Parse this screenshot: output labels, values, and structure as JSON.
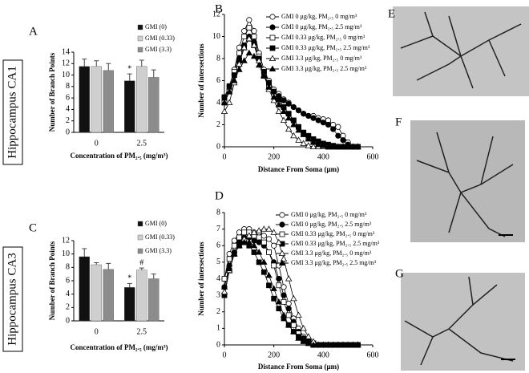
{
  "chart_data": [
    {
      "type": "bar",
      "panel": "A",
      "categories": [
        "0",
        "2.5"
      ],
      "x_label": "Concentration of PM₂.₅ (mg/m³)",
      "y_label": "Number of Branch Points",
      "ylim": [
        0,
        14
      ],
      "yticks": [
        0,
        2,
        4,
        6,
        8,
        10,
        12,
        14
      ],
      "grid": false,
      "series": [
        {
          "name": "GMI (0)",
          "color": "#111111",
          "values": [
            11.5,
            9.0
          ],
          "errors": [
            1.3,
            1.2
          ],
          "annotations": [
            null,
            "*"
          ]
        },
        {
          "name": "GMI (0.33)",
          "color": "#cfcfcf",
          "values": [
            11.5,
            11.5
          ],
          "errors": [
            1.0,
            1.1
          ],
          "annotations": [
            null,
            null
          ]
        },
        {
          "name": "GMI (3.3)",
          "color": "#8c8c8c",
          "values": [
            10.8,
            9.6
          ],
          "errors": [
            1.2,
            1.3
          ],
          "annotations": [
            null,
            null
          ]
        }
      ]
    },
    {
      "type": "line",
      "panel": "B",
      "x": [
        0,
        20,
        40,
        60,
        80,
        100,
        120,
        140,
        160,
        180,
        200,
        220,
        240,
        260,
        280,
        300,
        320,
        340,
        360,
        380,
        400,
        420,
        440,
        460,
        480,
        500,
        520,
        540
      ],
      "x_label": "Distance From Soma (μm)",
      "y_label": "Number of intersections",
      "xlim": [
        0,
        600
      ],
      "xticks": [
        0,
        200,
        400,
        600
      ],
      "ylim": [
        0,
        12
      ],
      "yticks": [
        0,
        2,
        4,
        6,
        8,
        10,
        12
      ],
      "series": [
        {
          "name": "GMI 0 μg/kg, PM₂.₅ 0 mg/m³",
          "color": "#000000",
          "marker": "circle",
          "filled": false,
          "values": [
            4.5,
            5.5,
            7,
            9,
            10.5,
            11.5,
            10.5,
            8.5,
            7,
            6,
            5.2,
            4.8,
            4.3,
            4,
            3.6,
            3.3,
            3,
            2.8,
            2.8,
            2.6,
            2.5,
            2.4,
            2,
            1.8,
            1,
            0.4,
            0,
            0
          ]
        },
        {
          "name": "GMI 0 μg/kg, PM₂.₅ 2.5 mg/m³",
          "color": "#000000",
          "marker": "circle",
          "filled": true,
          "values": [
            4.2,
            5.2,
            6.5,
            8,
            9.2,
            10,
            9.5,
            8,
            6.8,
            5.8,
            5,
            4.6,
            4.2,
            3.9,
            3.6,
            3.3,
            3,
            2.8,
            2.6,
            2.4,
            2.2,
            2,
            1.6,
            1,
            0.6,
            0.2,
            0,
            0
          ]
        },
        {
          "name": "GMI 0.33 μg/kg, PM₂.₅ 0 mg/m³",
          "color": "#000000",
          "marker": "square",
          "filled": false,
          "values": [
            4,
            5,
            6.8,
            8.5,
            10,
            10.8,
            10,
            8.2,
            6.5,
            5.5,
            4.8,
            4.2,
            3.6,
            3,
            2.4,
            1.8,
            1.2,
            0.8,
            0.5,
            0.3,
            0.1,
            0,
            0,
            0,
            0,
            0,
            0,
            0
          ]
        },
        {
          "name": "GMI 0.33 μg/kg, PM₂.₅ 2.5 mg/m³",
          "color": "#000000",
          "marker": "square",
          "filled": true,
          "values": [
            4.5,
            5.5,
            6.5,
            7.8,
            9,
            9.8,
            9.2,
            8,
            6.8,
            5.8,
            5,
            4.3,
            3.6,
            3,
            2.4,
            1.8,
            1.3,
            1,
            0.7,
            0.5,
            0.3,
            0.2,
            0.1,
            0,
            0,
            0,
            0,
            0
          ]
        },
        {
          "name": "GMI 3.3 μg/kg, PM₂.₅ 0 mg/m³",
          "color": "#000000",
          "marker": "triangle",
          "filled": false,
          "values": [
            3.2,
            4,
            5.8,
            7.5,
            9,
            9.8,
            9.2,
            7.8,
            6.5,
            5.2,
            4.2,
            3.2,
            2.4,
            1.6,
            1,
            0.6,
            0.3,
            0.1,
            0,
            0,
            0,
            0,
            0,
            0,
            0,
            0,
            0,
            0
          ]
        },
        {
          "name": "GMI 3.3 μg/kg, PM₂.₅ 2.5 mg/m³",
          "color": "#000000",
          "marker": "triangle",
          "filled": true,
          "values": [
            4,
            5,
            6,
            7,
            7.8,
            8.5,
            8.2,
            7.4,
            6.4,
            5.4,
            4.5,
            3.8,
            3.2,
            2.6,
            2,
            1.5,
            1.1,
            0.7,
            0.4,
            0.2,
            0.1,
            0,
            0,
            0,
            0,
            0,
            0,
            0
          ]
        }
      ]
    },
    {
      "type": "bar",
      "panel": "C",
      "categories": [
        "0",
        "2.5"
      ],
      "x_label": "Concentration of PM₂.₅ (mg/m³)",
      "y_label": "Number of Branch Points",
      "ylim": [
        0,
        12
      ],
      "yticks": [
        0,
        2,
        4,
        6,
        8,
        10,
        12
      ],
      "grid": false,
      "series": [
        {
          "name": "GMI (0)",
          "color": "#111111",
          "values": [
            9.6,
            5.0
          ],
          "errors": [
            1.2,
            0.6
          ],
          "annotations": [
            null,
            "*"
          ]
        },
        {
          "name": "GMI (0.33)",
          "color": "#cfcfcf",
          "values": [
            8.4,
            7.6
          ],
          "errors": [
            0.3,
            0.3
          ],
          "annotations": [
            null,
            "#"
          ]
        },
        {
          "name": "GMI (3.3)",
          "color": "#8c8c8c",
          "values": [
            7.7,
            6.3
          ],
          "errors": [
            0.9,
            0.7
          ],
          "annotations": [
            null,
            null
          ]
        }
      ]
    },
    {
      "type": "line",
      "panel": "D",
      "x": [
        0,
        20,
        40,
        60,
        80,
        100,
        120,
        140,
        160,
        180,
        200,
        220,
        240,
        260,
        280,
        300,
        320,
        340,
        360,
        380,
        400,
        420,
        440,
        460,
        480,
        500,
        520,
        540
      ],
      "x_label": "Distance From Soma (μm)",
      "y_label": "Number of intersections",
      "xlim": [
        0,
        600
      ],
      "xticks": [
        0,
        200,
        400,
        600
      ],
      "ylim": [
        0,
        8
      ],
      "yticks": [
        0,
        1,
        2,
        3,
        4,
        5,
        6,
        7,
        8
      ],
      "series": [
        {
          "name": "GMI 0 μg/kg, PM₂.₅ 0 mg/m³",
          "color": "#000000",
          "marker": "circle",
          "filled": false,
          "values": [
            4,
            5.5,
            6.3,
            6.8,
            7,
            7,
            6.8,
            6.8,
            6.6,
            6.4,
            6,
            4.8,
            3.5,
            2.5,
            1.6,
            1,
            0.5,
            0.2,
            0.1,
            0,
            0,
            0,
            0,
            0,
            0,
            0,
            0,
            0
          ]
        },
        {
          "name": "GMI 0 μg/kg, PM₂.₅ 2.5 mg/m³",
          "color": "#000000",
          "marker": "circle",
          "filled": true,
          "values": [
            3.5,
            4.8,
            5.6,
            6.2,
            6.5,
            6.5,
            6.3,
            6.2,
            6,
            5.6,
            5,
            4,
            3,
            2.2,
            1.4,
            0.8,
            0.4,
            0.2,
            0,
            0,
            0,
            0,
            0,
            0,
            0,
            0,
            0,
            0
          ]
        },
        {
          "name": "GMI 0.33 μg/kg, PM₂.₅ 0 mg/m³",
          "color": "#000000",
          "marker": "square",
          "filled": false,
          "values": [
            4,
            5.2,
            6,
            6.5,
            6.8,
            6.8,
            6.6,
            6.5,
            6.2,
            5.6,
            4.8,
            3.6,
            2.6,
            1.8,
            1.2,
            0.7,
            0.3,
            0.1,
            0,
            0,
            0,
            0,
            0,
            0,
            0,
            0,
            0,
            0
          ]
        },
        {
          "name": "GMI 0.33 μg/kg, PM₂.₅ 2.5 mg/m³",
          "color": "#000000",
          "marker": "square",
          "filled": true,
          "values": [
            3,
            4.5,
            5.5,
            6,
            6.2,
            6,
            5.6,
            5,
            4.4,
            3.6,
            2.8,
            2.2,
            1.6,
            1.2,
            0.8,
            0.5,
            0.3,
            0.2,
            0.1,
            0,
            0,
            0,
            0,
            0,
            0,
            0,
            0,
            0
          ]
        },
        {
          "name": "GMI 3.3 μg/kg, PM₂.₅ 0 mg/m³",
          "color": "#000000",
          "marker": "triangle",
          "filled": false,
          "values": [
            3.2,
            4.5,
            5.5,
            6,
            6.4,
            6.6,
            6.8,
            6.9,
            7,
            7,
            6.8,
            6.2,
            5.2,
            4,
            2.8,
            1.8,
            1,
            0.5,
            0.2,
            0,
            0,
            0,
            0,
            0,
            0,
            0,
            0,
            0
          ]
        },
        {
          "name": "GMI 3.3 μg/kg, PM₂.₅ 2.5 mg/m³",
          "color": "#000000",
          "marker": "triangle",
          "filled": true,
          "values": [
            3.5,
            4.6,
            5.5,
            6,
            6.2,
            6.2,
            6,
            5.6,
            5,
            4.2,
            3.4,
            2.6,
            1.8,
            1.2,
            0.8,
            0.4,
            0.2,
            0.1,
            0,
            0,
            0,
            0,
            0,
            0,
            0,
            0,
            0,
            0
          ]
        }
      ]
    }
  ],
  "regions": [
    "Hippocampus CA1",
    "Hippocampus CA3"
  ],
  "image_panels": [
    "E",
    "F",
    "G"
  ]
}
